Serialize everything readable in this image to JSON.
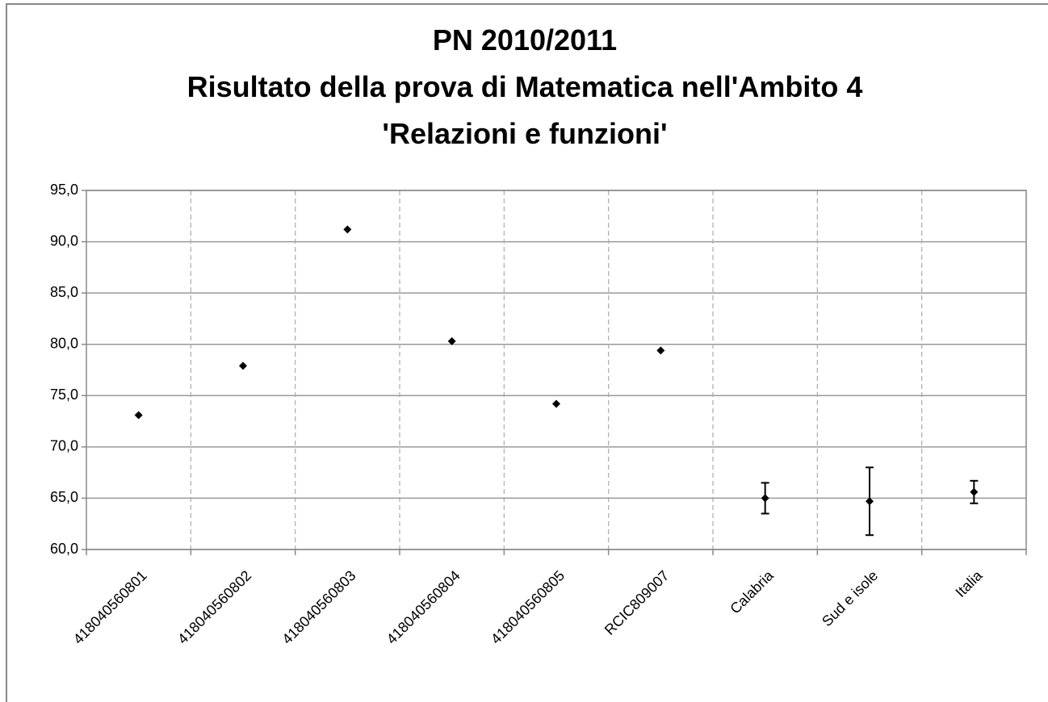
{
  "chart_data": {
    "type": "scatter",
    "title": [
      "PN 2010/2011",
      "Risultato della prova di Matematica nell'Ambito 4",
      "'Relazioni e funzioni'"
    ],
    "categories": [
      "418040560801",
      "418040560802",
      "418040560803",
      "418040560804",
      "418040560805",
      "RCIC809007",
      "Calabria",
      "Sud e isole",
      "Italia"
    ],
    "values": [
      73.1,
      77.9,
      91.2,
      80.3,
      74.2,
      79.4,
      65.0,
      64.7,
      65.6
    ],
    "errors": [
      null,
      null,
      null,
      null,
      null,
      null,
      1.5,
      3.3,
      1.1
    ],
    "color": "#000000",
    "ylim": [
      60,
      95
    ],
    "yticks": [
      {
        "value": 60,
        "label": "60,0"
      },
      {
        "value": 65,
        "label": "65,0"
      },
      {
        "value": 70,
        "label": "70,0"
      },
      {
        "value": 75,
        "label": "75,0"
      },
      {
        "value": 80,
        "label": "80,0"
      },
      {
        "value": 85,
        "label": "85,0"
      },
      {
        "value": 90,
        "label": "90,0"
      },
      {
        "value": 95,
        "label": "95,0"
      }
    ],
    "grid": true
  }
}
